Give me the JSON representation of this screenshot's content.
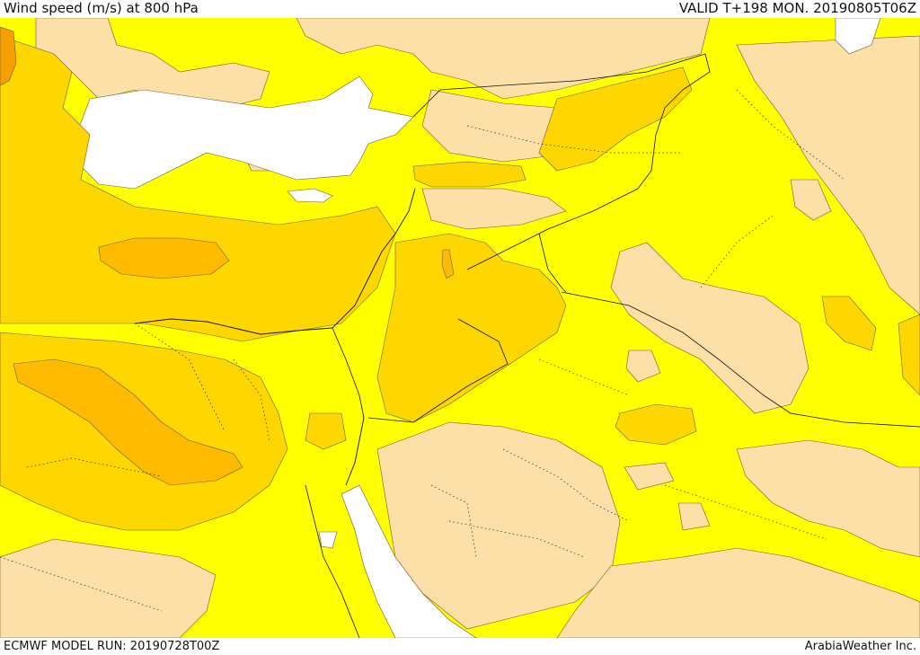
{
  "header": {
    "title": "Wind speed (m/s) at 800 hPa",
    "valid": "VALID T+198 MON. 20190805T06Z"
  },
  "footer": {
    "model_run": "ECMWF MODEL RUN: 20190728T00Z",
    "credit": "ArabiaWeather Inc."
  },
  "colors": {
    "background": "#ffff00",
    "calm": "#fde0a8",
    "sea": "#ffffff",
    "moderate": "#ffd700",
    "strong": "#ffbb00",
    "stronger": "#f5a000"
  }
}
